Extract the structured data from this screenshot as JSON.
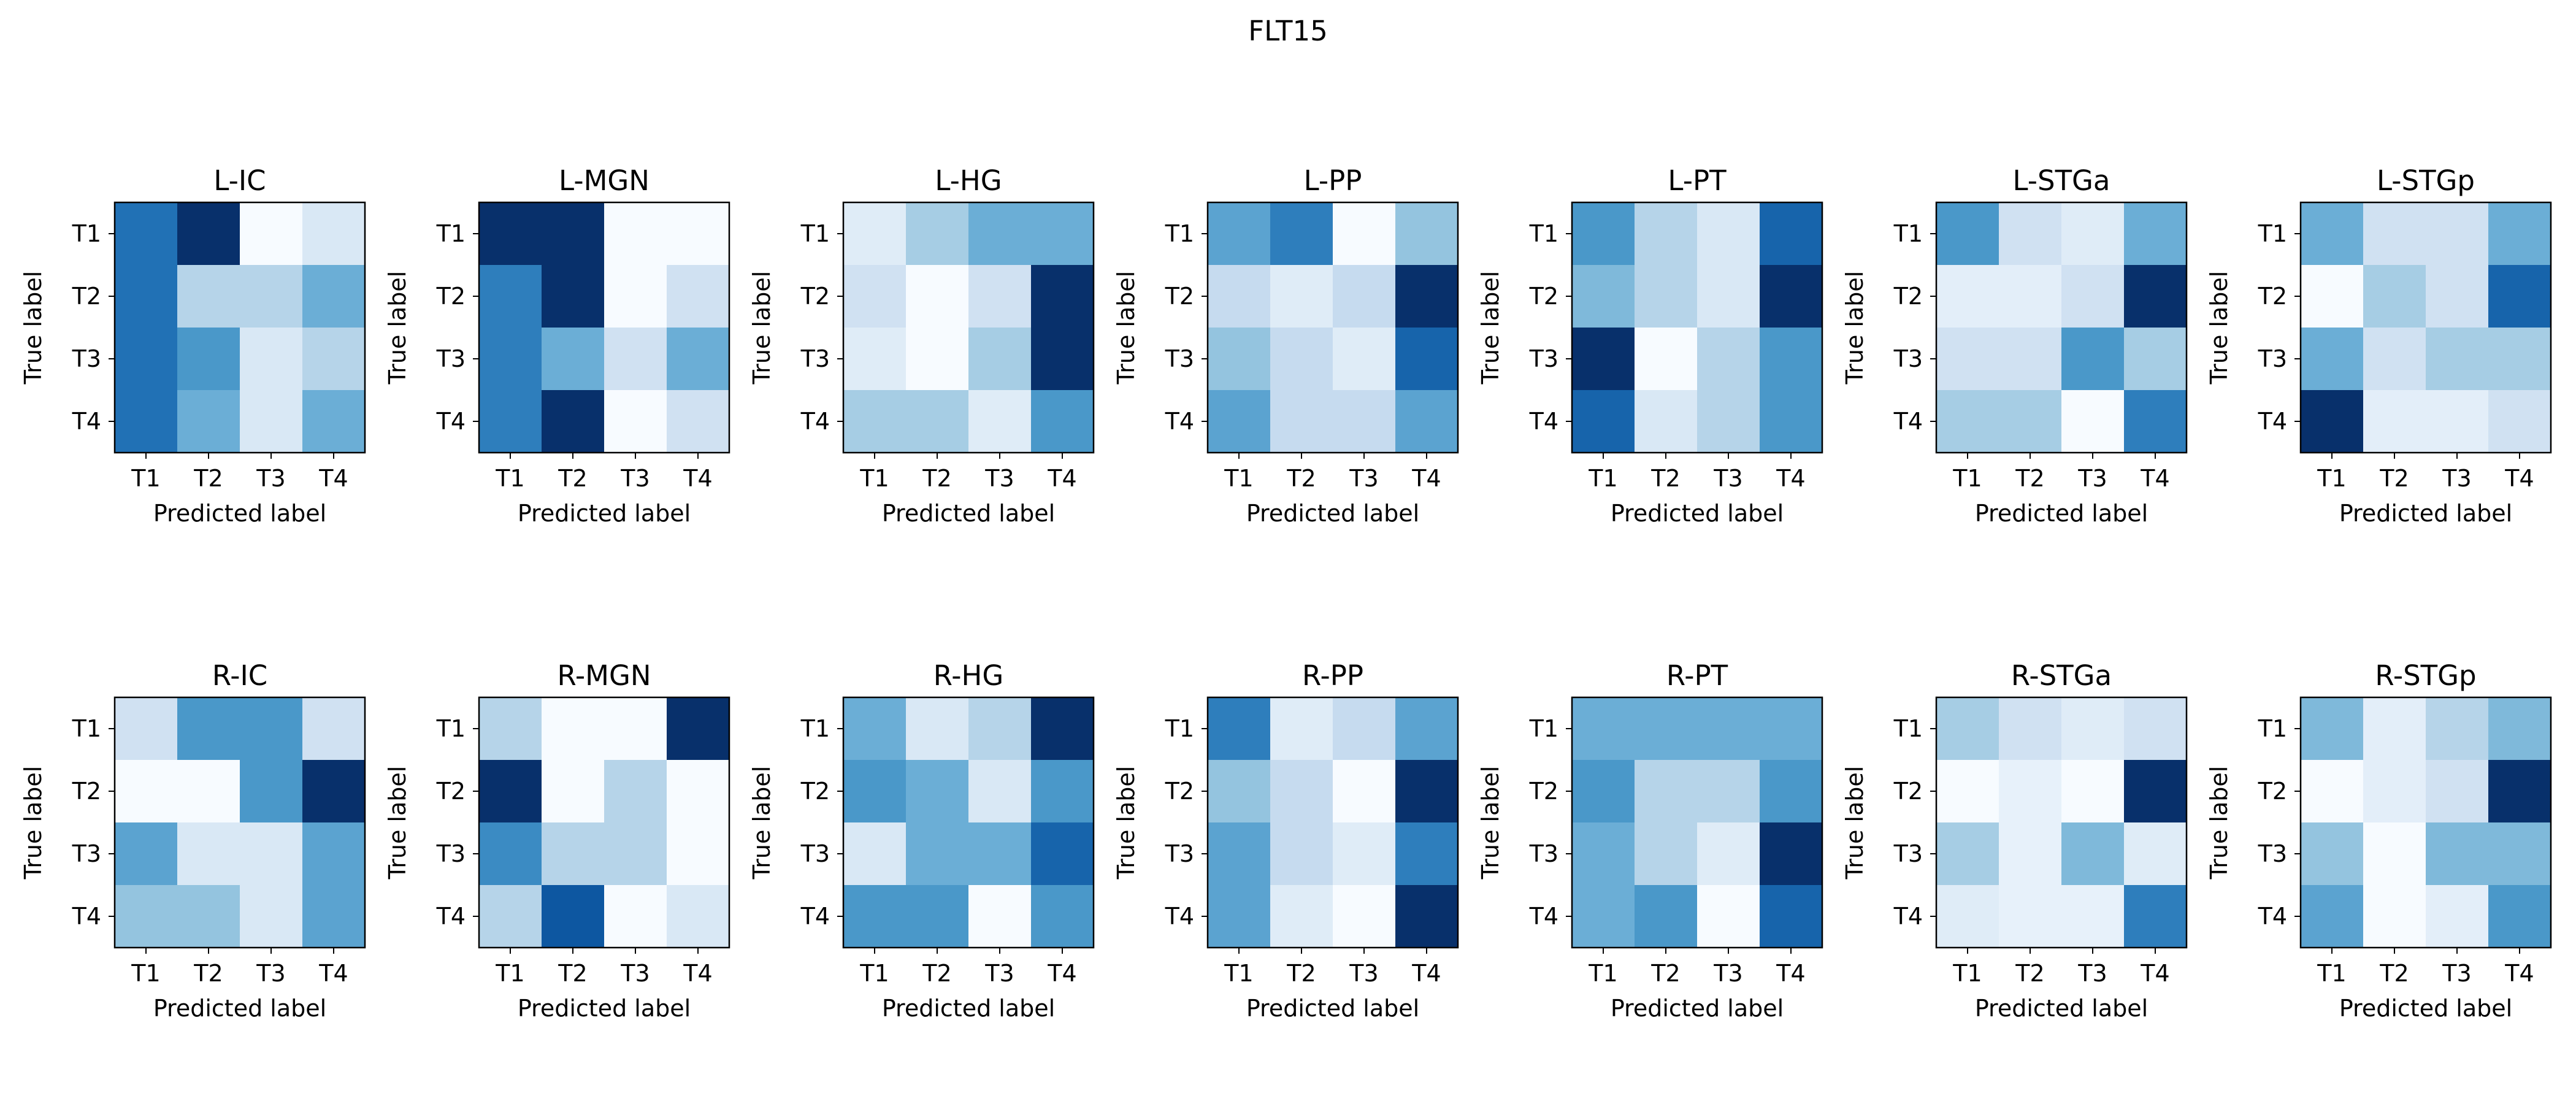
{
  "figure": {
    "suptitle": "FLT15"
  },
  "chart_data": [
    {
      "type": "heatmap",
      "title": "L-IC",
      "x": [
        "T1",
        "T2",
        "T3",
        "T4"
      ],
      "y": [
        "T1",
        "T2",
        "T3",
        "T4"
      ],
      "xlabel": "Predicted label",
      "ylabel": "True label",
      "z": [
        [
          0.75,
          1.0,
          0.0,
          0.15
        ],
        [
          0.75,
          0.3,
          0.3,
          0.5
        ],
        [
          0.75,
          0.6,
          0.15,
          0.3
        ],
        [
          0.75,
          0.5,
          0.15,
          0.5
        ]
      ]
    },
    {
      "type": "heatmap",
      "title": "L-MGN",
      "x": [
        "T1",
        "T2",
        "T3",
        "T4"
      ],
      "y": [
        "T1",
        "T2",
        "T3",
        "T4"
      ],
      "xlabel": "Predicted label",
      "ylabel": "True label",
      "z": [
        [
          1.0,
          1.0,
          0.0,
          0.0
        ],
        [
          0.7,
          1.0,
          0.0,
          0.2
        ],
        [
          0.7,
          0.5,
          0.2,
          0.5
        ],
        [
          0.7,
          1.0,
          0.0,
          0.2
        ]
      ]
    },
    {
      "type": "heatmap",
      "title": "L-HG",
      "x": [
        "T1",
        "T2",
        "T3",
        "T4"
      ],
      "y": [
        "T1",
        "T2",
        "T3",
        "T4"
      ],
      "xlabel": "Predicted label",
      "ylabel": "True label",
      "z": [
        [
          0.12,
          0.35,
          0.5,
          0.5
        ],
        [
          0.2,
          0.0,
          0.2,
          1.0
        ],
        [
          0.12,
          0.0,
          0.35,
          1.0
        ],
        [
          0.35,
          0.35,
          0.12,
          0.6
        ]
      ]
    },
    {
      "type": "heatmap",
      "title": "L-PP",
      "x": [
        "T1",
        "T2",
        "T3",
        "T4"
      ],
      "y": [
        "T1",
        "T2",
        "T3",
        "T4"
      ],
      "xlabel": "Predicted label",
      "ylabel": "True label",
      "z": [
        [
          0.55,
          0.7,
          0.0,
          0.4
        ],
        [
          0.25,
          0.12,
          0.25,
          1.0
        ],
        [
          0.4,
          0.25,
          0.12,
          0.8
        ],
        [
          0.55,
          0.25,
          0.25,
          0.55
        ]
      ]
    },
    {
      "type": "heatmap",
      "title": "L-PT",
      "x": [
        "T1",
        "T2",
        "T3",
        "T4"
      ],
      "y": [
        "T1",
        "T2",
        "T3",
        "T4"
      ],
      "xlabel": "Predicted label",
      "ylabel": "True label",
      "z": [
        [
          0.6,
          0.3,
          0.15,
          0.8
        ],
        [
          0.45,
          0.3,
          0.15,
          1.0
        ],
        [
          1.0,
          0.0,
          0.3,
          0.6
        ],
        [
          0.8,
          0.15,
          0.3,
          0.6
        ]
      ]
    },
    {
      "type": "heatmap",
      "title": "L-STGa",
      "x": [
        "T1",
        "T2",
        "T3",
        "T4"
      ],
      "y": [
        "T1",
        "T2",
        "T3",
        "T4"
      ],
      "xlabel": "Predicted label",
      "ylabel": "True label",
      "z": [
        [
          0.6,
          0.2,
          0.12,
          0.5
        ],
        [
          0.1,
          0.1,
          0.2,
          1.0
        ],
        [
          0.2,
          0.2,
          0.6,
          0.35
        ],
        [
          0.35,
          0.35,
          0.0,
          0.7
        ]
      ]
    },
    {
      "type": "heatmap",
      "title": "L-STGp",
      "x": [
        "T1",
        "T2",
        "T3",
        "T4"
      ],
      "y": [
        "T1",
        "T2",
        "T3",
        "T4"
      ],
      "xlabel": "Predicted label",
      "ylabel": "True label",
      "z": [
        [
          0.5,
          0.2,
          0.2,
          0.5
        ],
        [
          0.0,
          0.35,
          0.2,
          0.8
        ],
        [
          0.5,
          0.2,
          0.35,
          0.35
        ],
        [
          1.0,
          0.1,
          0.1,
          0.2
        ]
      ]
    },
    {
      "type": "heatmap",
      "title": "R-IC",
      "x": [
        "T1",
        "T2",
        "T3",
        "T4"
      ],
      "y": [
        "T1",
        "T2",
        "T3",
        "T4"
      ],
      "xlabel": "Predicted label",
      "ylabel": "True label",
      "z": [
        [
          0.2,
          0.6,
          0.6,
          0.2
        ],
        [
          0.0,
          0.0,
          0.6,
          1.0
        ],
        [
          0.55,
          0.15,
          0.15,
          0.55
        ],
        [
          0.4,
          0.4,
          0.15,
          0.55
        ]
      ]
    },
    {
      "type": "heatmap",
      "title": "R-MGN",
      "x": [
        "T1",
        "T2",
        "T3",
        "T4"
      ],
      "y": [
        "T1",
        "T2",
        "T3",
        "T4"
      ],
      "xlabel": "Predicted label",
      "ylabel": "True label",
      "z": [
        [
          0.3,
          0.0,
          0.0,
          1.0
        ],
        [
          1.0,
          0.0,
          0.3,
          0.0
        ],
        [
          0.65,
          0.3,
          0.3,
          0.0
        ],
        [
          0.3,
          0.85,
          0.0,
          0.15
        ]
      ]
    },
    {
      "type": "heatmap",
      "title": "R-HG",
      "x": [
        "T1",
        "T2",
        "T3",
        "T4"
      ],
      "y": [
        "T1",
        "T2",
        "T3",
        "T4"
      ],
      "xlabel": "Predicted label",
      "ylabel": "True label",
      "z": [
        [
          0.5,
          0.15,
          0.3,
          1.0
        ],
        [
          0.6,
          0.5,
          0.15,
          0.6
        ],
        [
          0.15,
          0.5,
          0.5,
          0.8
        ],
        [
          0.6,
          0.6,
          0.0,
          0.6
        ]
      ]
    },
    {
      "type": "heatmap",
      "title": "R-PP",
      "x": [
        "T1",
        "T2",
        "T3",
        "T4"
      ],
      "y": [
        "T1",
        "T2",
        "T3",
        "T4"
      ],
      "xlabel": "Predicted label",
      "ylabel": "True label",
      "z": [
        [
          0.7,
          0.12,
          0.25,
          0.55
        ],
        [
          0.4,
          0.25,
          0.0,
          1.0
        ],
        [
          0.55,
          0.25,
          0.12,
          0.7
        ],
        [
          0.55,
          0.12,
          0.0,
          1.0
        ]
      ]
    },
    {
      "type": "heatmap",
      "title": "R-PT",
      "x": [
        "T1",
        "T2",
        "T3",
        "T4"
      ],
      "y": [
        "T1",
        "T2",
        "T3",
        "T4"
      ],
      "xlabel": "Predicted label",
      "ylabel": "True label",
      "z": [
        [
          0.5,
          0.5,
          0.5,
          0.5
        ],
        [
          0.6,
          0.3,
          0.3,
          0.6
        ],
        [
          0.5,
          0.3,
          0.12,
          1.0
        ],
        [
          0.5,
          0.6,
          0.0,
          0.8
        ]
      ]
    },
    {
      "type": "heatmap",
      "title": "R-STGa",
      "x": [
        "T1",
        "T2",
        "T3",
        "T4"
      ],
      "y": [
        "T1",
        "T2",
        "T3",
        "T4"
      ],
      "xlabel": "Predicted label",
      "ylabel": "True label",
      "z": [
        [
          0.35,
          0.2,
          0.12,
          0.2
        ],
        [
          0.0,
          0.08,
          0.0,
          1.0
        ],
        [
          0.35,
          0.08,
          0.45,
          0.12
        ],
        [
          0.12,
          0.08,
          0.08,
          0.7
        ]
      ]
    },
    {
      "type": "heatmap",
      "title": "R-STGp",
      "x": [
        "T1",
        "T2",
        "T3",
        "T4"
      ],
      "y": [
        "T1",
        "T2",
        "T3",
        "T4"
      ],
      "xlabel": "Predicted label",
      "ylabel": "True label",
      "z": [
        [
          0.45,
          0.1,
          0.3,
          0.45
        ],
        [
          0.0,
          0.1,
          0.2,
          1.0
        ],
        [
          0.4,
          0.0,
          0.45,
          0.45
        ],
        [
          0.55,
          0.0,
          0.1,
          0.6
        ]
      ]
    }
  ]
}
